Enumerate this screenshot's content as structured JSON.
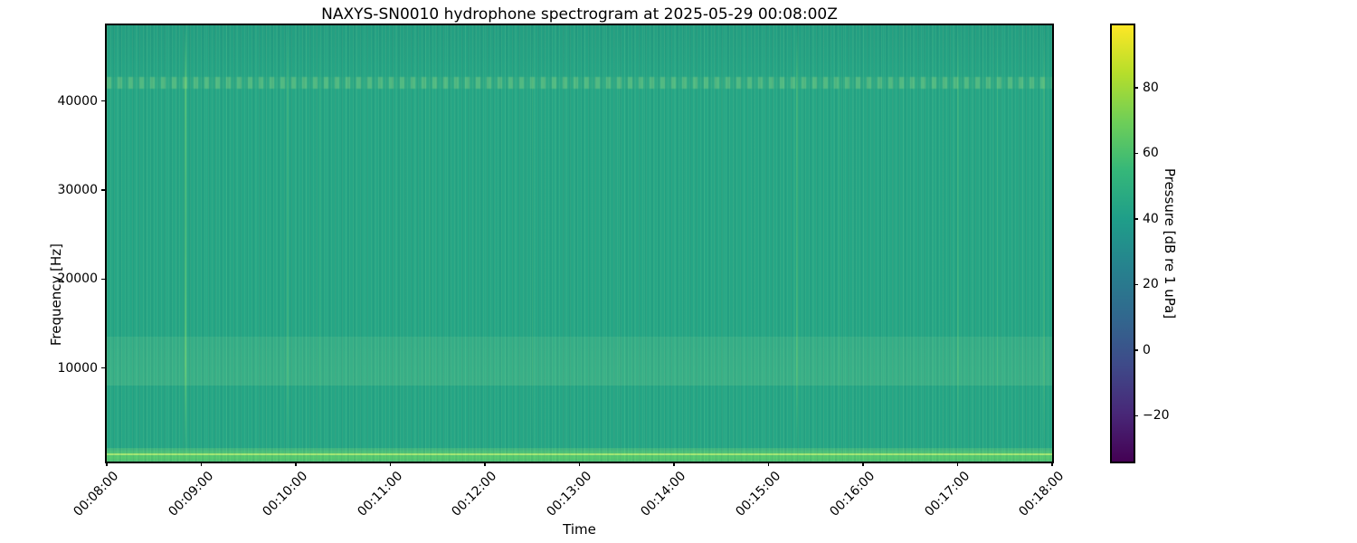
{
  "figure": {
    "background": "#ffffff",
    "title": "NAXYS-SN0010 hydrophone spectrogram at 2025-05-29 00:08:00Z"
  },
  "chart_data": {
    "type": "heatmap",
    "subtype": "spectrogram",
    "title": "NAXYS-SN0010 hydrophone spectrogram at 2025-05-29 00:08:00Z",
    "xlabel": "Time",
    "ylabel": "Frequency [Hz]",
    "colorbar_label": "Pressure [dB re 1 uPa]",
    "x_range": [
      "00:08:00",
      "00:18:00"
    ],
    "x_tick_labels": [
      "00:08:00",
      "00:09:00",
      "00:10:00",
      "00:11:00",
      "00:12:00",
      "00:13:00",
      "00:14:00",
      "00:15:00",
      "00:16:00",
      "00:17:00",
      "00:18:00"
    ],
    "y_range_hz": [
      0,
      48500
    ],
    "y_ticks": [
      10000,
      20000,
      30000,
      40000
    ],
    "colorbar_range_db": [
      -34,
      99
    ],
    "colorbar_ticks": [
      80,
      60,
      40,
      20,
      0,
      -20
    ],
    "colorbar_tick_labels": [
      "80",
      "60",
      "40",
      "20",
      "0",
      "−20"
    ],
    "colormap": "viridis",
    "colormap_stops": [
      "#440154",
      "#482878",
      "#3e4a89",
      "#31688e",
      "#26828e",
      "#1f9e89",
      "#35b779",
      "#6ece58",
      "#b5de2b",
      "#fde725"
    ],
    "background_level_db": 40,
    "base_color": "#26a685",
    "legend": "none",
    "grid": false,
    "features": [
      {
        "kind": "tonal",
        "label": "faint narrowband tone",
        "freq_hz": [
          41400,
          42700
        ],
        "level_db": 44
      },
      {
        "kind": "broadband",
        "label": "elevated mid-band noise",
        "freq_hz": [
          8000,
          13500
        ],
        "level_db": 43
      },
      {
        "kind": "lowband",
        "label": "bright low-frequency energy",
        "freq_hz": [
          0,
          1000
        ],
        "level_db": 52
      },
      {
        "kind": "click",
        "time": "00:08:50",
        "width": 2,
        "opacity": 0.5
      },
      {
        "kind": "click",
        "time": "00:09:55",
        "width": 2,
        "opacity": 0.2
      },
      {
        "kind": "click",
        "time": "00:10:15",
        "width": 1,
        "opacity": 0.15
      },
      {
        "kind": "click",
        "time": "00:11:25",
        "width": 1,
        "opacity": 0.12
      },
      {
        "kind": "click",
        "time": "00:12:30",
        "width": 1,
        "opacity": 0.18
      },
      {
        "kind": "click",
        "time": "00:13:25",
        "width": 1,
        "opacity": 0.12
      },
      {
        "kind": "click",
        "time": "00:14:30",
        "width": 1,
        "opacity": 0.1
      },
      {
        "kind": "click",
        "time": "00:15:18",
        "width": 2,
        "opacity": 0.35
      },
      {
        "kind": "click",
        "time": "00:15:45",
        "width": 1,
        "opacity": 0.15
      },
      {
        "kind": "click",
        "time": "00:17:00",
        "width": 2,
        "opacity": 0.22
      },
      {
        "kind": "click",
        "time": "00:17:25",
        "width": 1,
        "opacity": 0.15
      },
      {
        "kind": "click",
        "time": "00:17:55",
        "width": 2,
        "opacity": 0.2
      }
    ]
  }
}
